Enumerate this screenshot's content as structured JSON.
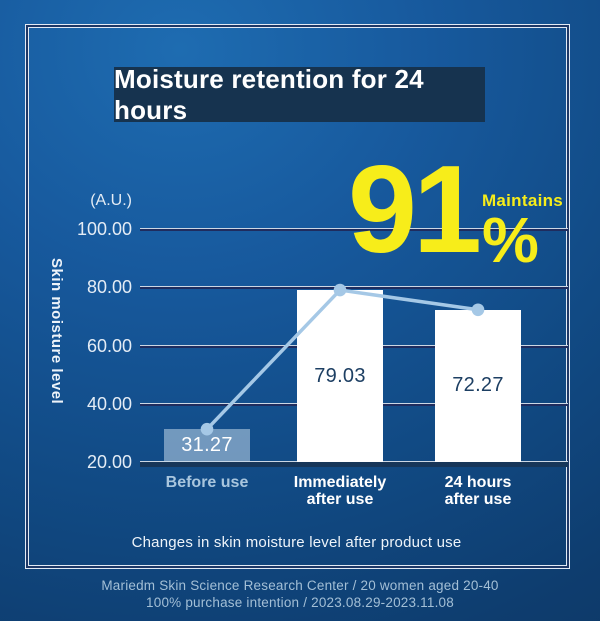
{
  "banner": {
    "title": "Moisture retention for 24 hours"
  },
  "highlight": {
    "value": "91",
    "percent_sign": "%",
    "label": "Maintains",
    "color": "#f7ed1a"
  },
  "caption": "Changes in skin moisture level after product use",
  "footer": {
    "line1": "Mariedm Skin Science Research Center / 20 women aged 20-40",
    "line2": "100% purchase intention / 2023.08.29-2023.11.08"
  },
  "chart_data": {
    "type": "bar",
    "overlay": "line",
    "title": "Moisture retention for 24 hours",
    "y_unit": "(A.U.)",
    "ylabel": "Skin moisture level",
    "categories": [
      [
        "Before use"
      ],
      [
        "Immediately",
        "after use"
      ],
      [
        "24 hours",
        "after use"
      ]
    ],
    "values": [
      31.27,
      79.03,
      72.27
    ],
    "value_labels": [
      "31.27",
      "79.03",
      "72.27"
    ],
    "ylim": [
      20,
      100
    ],
    "yticks": [
      100,
      80,
      60,
      40,
      20
    ],
    "ytick_labels": [
      "100.00",
      "80.00",
      "60.00",
      "40.00",
      "20.00"
    ],
    "grid": true,
    "legend": false,
    "bar_colors": [
      "rgba(193,215,233,0.55)",
      "#ffffff",
      "#ffffff"
    ],
    "value_label_colors": [
      "#ffffff",
      "#1d3f63",
      "#1d3f63"
    ],
    "category_colors": [
      "#a9c6de",
      "#ffffff",
      "#ffffff"
    ],
    "line_color": "#a5c8e6"
  }
}
